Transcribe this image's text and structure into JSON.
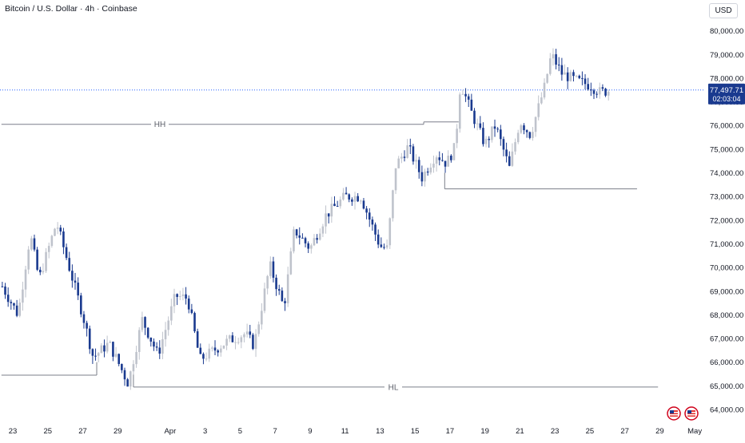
{
  "header": {
    "title": "Bitcoin / U.S. Dollar · 4h · Coinbase",
    "currency": "USD"
  },
  "price_badge": {
    "price": "77,497.71",
    "countdown": "02:03:04"
  },
  "colors": {
    "up": "#bfc3cc",
    "down": "#1a3a8f",
    "level_line": "#7b7f8a",
    "last_price_line": "#2962ff",
    "badge_bg": "#1a3a8f",
    "axis_text": "#131722"
  },
  "icons": [
    "us-flag-icon",
    "us-flag-icon"
  ],
  "chart_data": {
    "type": "candlestick",
    "title": "Bitcoin / U.S. Dollar · 4h · Coinbase",
    "ylim": [
      63700,
      80500
    ],
    "y_ticks": [
      "80,000.00",
      "79,000.00",
      "78,000.00",
      "77,000.00",
      "76,000.00",
      "75,000.00",
      "74,000.00",
      "73,000.00",
      "72,000.00",
      "71,000.00",
      "70,000.00",
      "69,000.00",
      "68,000.00",
      "67,000.00",
      "66,000.00",
      "65,000.00",
      "64,000.00"
    ],
    "x_ticks": [
      {
        "label": "23",
        "day": 0
      },
      {
        "label": "25",
        "day": 2
      },
      {
        "label": "27",
        "day": 4
      },
      {
        "label": "29",
        "day": 6
      },
      {
        "label": "Apr",
        "day": 9
      },
      {
        "label": "3",
        "day": 11
      },
      {
        "label": "5",
        "day": 13
      },
      {
        "label": "7",
        "day": 15
      },
      {
        "label": "9",
        "day": 17
      },
      {
        "label": "11",
        "day": 19
      },
      {
        "label": "13",
        "day": 21
      },
      {
        "label": "15",
        "day": 23
      },
      {
        "label": "17",
        "day": 25
      },
      {
        "label": "19",
        "day": 27
      },
      {
        "label": "21",
        "day": 29
      },
      {
        "label": "23",
        "day": 31
      },
      {
        "label": "25",
        "day": 33
      },
      {
        "label": "27",
        "day": 35
      },
      {
        "label": "29",
        "day": 37
      },
      {
        "label": "May",
        "day": 39
      }
    ],
    "path_points": [
      [
        -0.6,
        69200
      ],
      [
        0.3,
        68000
      ],
      [
        1.0,
        71400
      ],
      [
        1.5,
        69500
      ],
      [
        2.5,
        71900
      ],
      [
        3.0,
        70600
      ],
      [
        4.0,
        68000
      ],
      [
        4.6,
        66200
      ],
      [
        5.5,
        66800
      ],
      [
        6.6,
        65100
      ],
      [
        7.4,
        67800
      ],
      [
        8.3,
        66300
      ],
      [
        9.3,
        68800
      ],
      [
        10.0,
        68700
      ],
      [
        10.7,
        66100
      ],
      [
        12.3,
        66900
      ],
      [
        13.3,
        67200
      ],
      [
        13.8,
        66700
      ],
      [
        14.7,
        70100
      ],
      [
        15.5,
        68300
      ],
      [
        16.1,
        71600
      ],
      [
        17.0,
        70800
      ],
      [
        17.9,
        72200
      ],
      [
        19.0,
        73000
      ],
      [
        19.9,
        73000
      ],
      [
        21.0,
        70900
      ],
      [
        21.4,
        70800
      ],
      [
        21.9,
        74300
      ],
      [
        22.6,
        75100
      ],
      [
        23.4,
        73800
      ],
      [
        24.2,
        74800
      ],
      [
        24.8,
        74400
      ],
      [
        25.3,
        75100
      ],
      [
        25.6,
        77800
      ],
      [
        26.2,
        76600
      ],
      [
        27.0,
        75200
      ],
      [
        27.6,
        76000
      ],
      [
        28.4,
        74200
      ],
      [
        29.0,
        76200
      ],
      [
        29.6,
        75600
      ],
      [
        30.4,
        77600
      ],
      [
        30.8,
        79000
      ],
      [
        31.4,
        78200
      ],
      [
        32.2,
        77900
      ],
      [
        33.0,
        77700
      ],
      [
        33.6,
        77400
      ],
      [
        34.2,
        77500
      ]
    ],
    "levels": [
      {
        "label": "HH",
        "price": 76050,
        "from_day": -0.65,
        "to_day": 23.5
      },
      {
        "label": "",
        "price": 76150,
        "from_day": 23.5,
        "to_day": 25.5
      },
      {
        "label": "",
        "price": 73320,
        "from_day": 24.7,
        "to_day": 35.7
      },
      {
        "label": "",
        "price": 65450,
        "from_day": -0.65,
        "to_day": 4.8
      },
      {
        "label": "HL",
        "price": 64950,
        "from_day": 6.9,
        "to_day": 36.9
      }
    ],
    "last_price": 77497.71
  }
}
